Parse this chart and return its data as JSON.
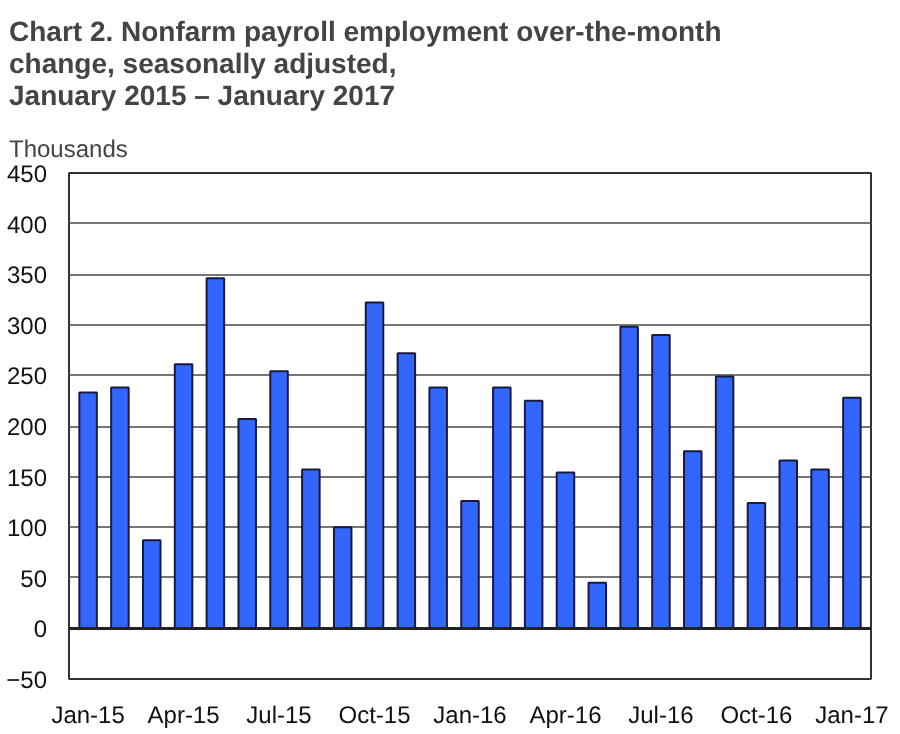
{
  "chart_data": {
    "type": "bar",
    "title": "Chart 2. Nonfarm payroll employment over-the-month\nchange, seasonally adjusted,\nJanuary 2015 – January 2017",
    "ylabel": "Thousands",
    "categories": [
      "Jan-15",
      null,
      null,
      "Apr-15",
      null,
      null,
      "Jul-15",
      null,
      null,
      "Oct-15",
      null,
      null,
      "Jan-16",
      null,
      null,
      "Apr-16",
      null,
      null,
      "Jul-16",
      null,
      null,
      "Oct-16",
      null,
      null,
      "Jan-17"
    ],
    "values": [
      233,
      238,
      87,
      261,
      346,
      207,
      254,
      157,
      100,
      322,
      272,
      238,
      126,
      238,
      225,
      154,
      45,
      298,
      290,
      175,
      249,
      124,
      166,
      157,
      228
    ],
    "color": "#3366ff",
    "ylim": [
      -50,
      450
    ],
    "yticks": [
      -50,
      0,
      50,
      100,
      150,
      200,
      250,
      300,
      350,
      400,
      450
    ],
    "grid": "y"
  }
}
